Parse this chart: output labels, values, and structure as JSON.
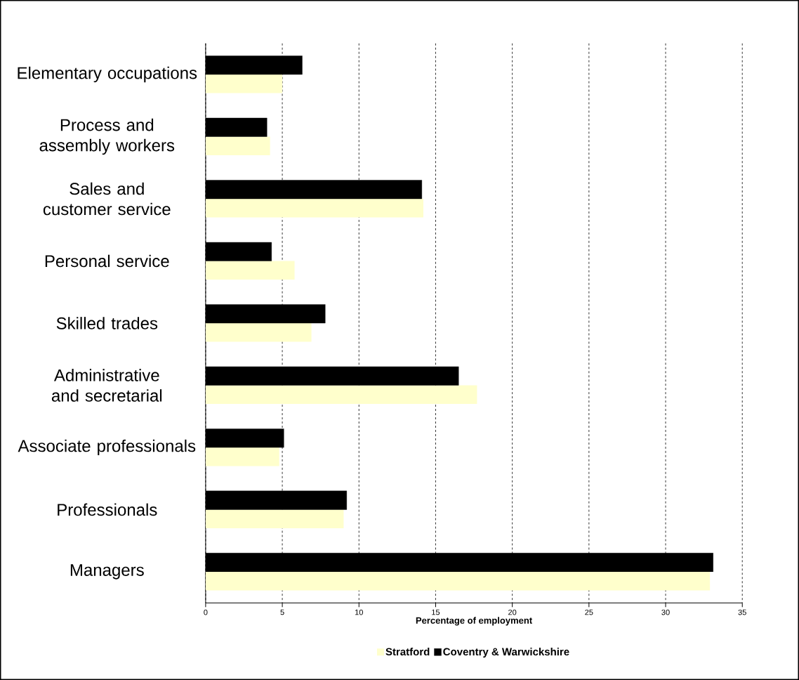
{
  "chart_data": {
    "type": "bar",
    "orientation": "horizontal",
    "categories": [
      "Elementary occupations",
      "Process and assembly workers",
      "Sales and customer service",
      "Personal service",
      "Skilled trades",
      "Administrative and secretarial",
      "Associate professionals",
      "Professionals",
      "Managers"
    ],
    "series": [
      {
        "name": "Stratford",
        "color": "#ffffcc",
        "values": [
          5.0,
          4.2,
          14.2,
          5.8,
          6.9,
          17.7,
          4.8,
          9.0,
          32.9
        ]
      },
      {
        "name": "Coventry & Warwickshire",
        "color": "#000000",
        "values": [
          6.3,
          4.0,
          14.1,
          4.3,
          7.8,
          16.5,
          5.1,
          9.2,
          33.1
        ]
      }
    ],
    "xlabel": "Percentage of employment",
    "xlim": [
      0,
      35
    ],
    "xticks": [
      0,
      5,
      10,
      15,
      20,
      25,
      30,
      35
    ],
    "grid": "x",
    "legend": "bottom"
  }
}
